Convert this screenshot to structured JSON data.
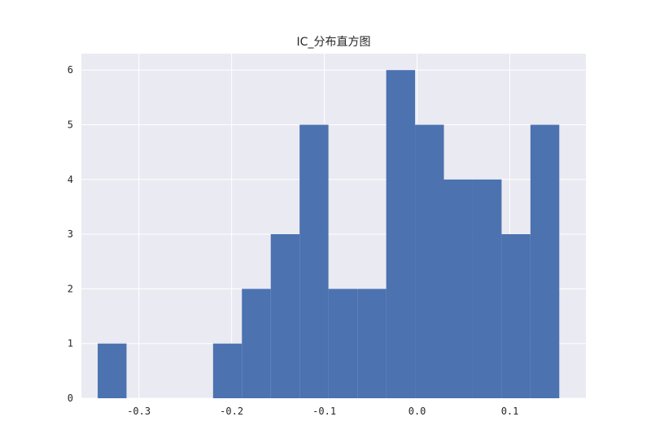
{
  "chart_data": {
    "type": "bar",
    "title": "IC_分布直方图",
    "xlabel": "",
    "ylabel": "",
    "xlim": [
      -0.362,
      0.182
    ],
    "ylim": [
      0,
      6.3
    ],
    "grid": true,
    "x_ticks": [
      -0.3,
      -0.2,
      -0.1,
      0.0,
      0.1
    ],
    "x_tick_labels": [
      "-0.3",
      "-0.2",
      "-0.1",
      "0.0",
      "0.1"
    ],
    "y_ticks": [
      0,
      1,
      2,
      3,
      4,
      5,
      6
    ],
    "y_tick_labels": [
      "0",
      "1",
      "2",
      "3",
      "4",
      "5",
      "6"
    ],
    "bin_edges": [
      -0.3444,
      -0.3133,
      -0.2822,
      -0.2511,
      -0.22,
      -0.1889,
      -0.1578,
      -0.1267,
      -0.0956,
      -0.0644,
      -0.0333,
      -0.0022,
      0.0289,
      0.06,
      0.0911,
      0.1222,
      0.1533
    ],
    "values": [
      1,
      0,
      0,
      0,
      1,
      2,
      3,
      5,
      2,
      2,
      6,
      5,
      4,
      4,
      3,
      5
    ],
    "colors": {
      "bar": "#4c72b0",
      "background": "#eaeaf2",
      "grid": "#ffffff",
      "text": "#262626"
    }
  }
}
